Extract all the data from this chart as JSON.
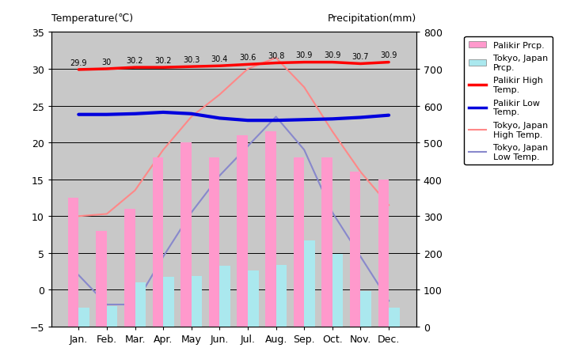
{
  "months": [
    "Jan.",
    "Feb.",
    "Mar.",
    "Apr.",
    "May",
    "Jun.",
    "Jul.",
    "Aug.",
    "Sep.",
    "Oct.",
    "Nov.",
    "Dec."
  ],
  "palikir_prcp": [
    350,
    260,
    320,
    460,
    500,
    460,
    520,
    530,
    460,
    460,
    420,
    400
  ],
  "tokyo_prcp": [
    52,
    56,
    120,
    135,
    138,
    165,
    153,
    168,
    234,
    197,
    97,
    52
  ],
  "palikir_high": [
    29.9,
    30.0,
    30.2,
    30.2,
    30.3,
    30.4,
    30.6,
    30.8,
    30.9,
    30.9,
    30.7,
    30.9
  ],
  "palikir_low": [
    23.8,
    23.8,
    23.9,
    24.1,
    23.9,
    23.3,
    23.0,
    23.0,
    23.1,
    23.2,
    23.4,
    23.7
  ],
  "tokyo_high": [
    10.0,
    10.3,
    13.5,
    19.0,
    23.5,
    26.5,
    30.0,
    31.5,
    27.5,
    21.5,
    16.0,
    11.5
  ],
  "tokyo_low": [
    2.0,
    -2.0,
    -2.0,
    4.5,
    10.5,
    15.5,
    19.5,
    23.5,
    19.0,
    10.5,
    4.5,
    -1.5
  ],
  "palikir_high_labels": [
    "29.9",
    "30",
    "30.2",
    "30.2",
    "30.3",
    "30.4",
    "30.6",
    "30.8",
    "30.9",
    "30.9",
    "30.7",
    "30.9"
  ],
  "temp_ylim": [
    -5,
    35
  ],
  "prcp_ylim": [
    0,
    800
  ],
  "bg_color": "#c8c8c8",
  "bar_color_palikir": "#ff99cc",
  "bar_color_tokyo": "#aae8ee",
  "line_palikir_high": "#ff0000",
  "line_palikir_low": "#0000dd",
  "line_tokyo_high": "#ff8888",
  "line_tokyo_low": "#8888cc",
  "title_left": "Temperature(℃)",
  "title_right": "Precipitation(mm)",
  "legend_labels": [
    "Palikir Prcp.",
    "Tokyo, Japan\nPrcp.",
    "Palikir High\nTemp.",
    "Palikir Low\nTemp.",
    "Tokyo, Japan\nHigh Temp.",
    "Tokyo, Japan\nLow Temp."
  ]
}
